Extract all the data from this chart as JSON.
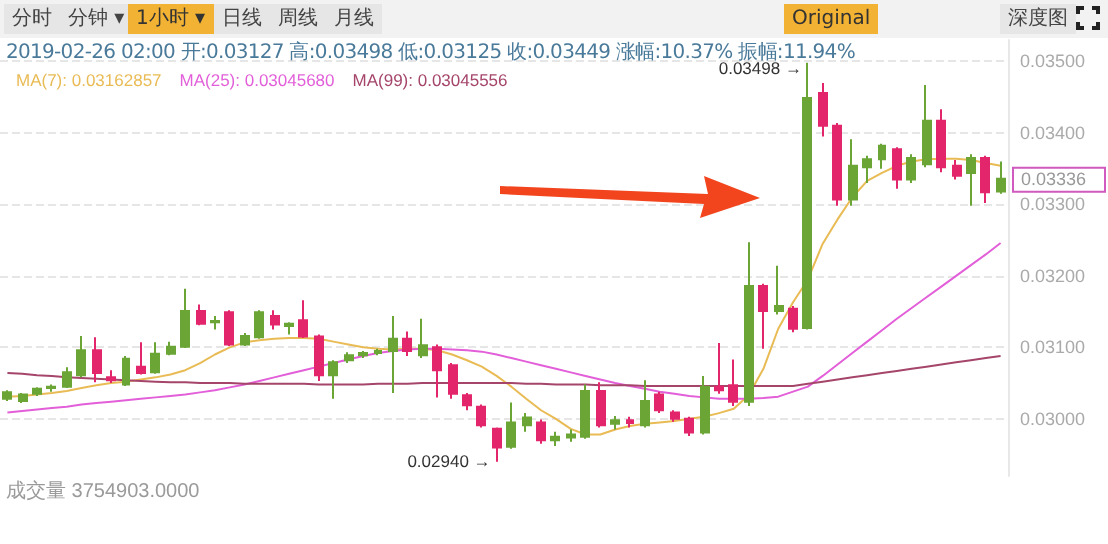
{
  "chart_data": {
    "type": "candlestick",
    "categories": [
      null,
      null,
      null,
      null,
      null,
      null,
      null,
      null,
      null,
      null,
      null,
      null,
      null,
      null,
      null,
      null,
      null,
      null,
      null,
      null,
      null,
      null,
      null,
      null,
      null,
      null,
      null,
      null,
      null,
      null,
      null,
      null,
      null,
      null,
      null,
      null,
      null,
      null,
      null,
      null,
      null,
      null,
      null,
      null,
      null,
      null,
      null,
      null,
      null,
      null,
      null,
      null,
      null,
      null,
      null,
      null,
      null,
      null,
      null,
      null,
      null,
      null,
      null,
      null,
      null,
      null,
      null,
      null
    ],
    "ohlc": [
      [
        0.03028,
        0.0304,
        0.03025,
        0.03037
      ],
      [
        0.03025,
        0.03036,
        0.03022,
        0.03034
      ],
      [
        0.03035,
        0.03044,
        0.03032,
        0.03042
      ],
      [
        0.03043,
        0.03048,
        0.03038,
        0.03045
      ],
      [
        0.03045,
        0.03072,
        0.03043,
        0.03065
      ],
      [
        0.03061,
        0.03116,
        0.03058,
        0.03096
      ],
      [
        0.03096,
        0.03114,
        0.03051,
        0.03064
      ],
      [
        0.03058,
        0.03068,
        0.0305,
        0.03054
      ],
      [
        0.03048,
        0.03088,
        0.03046,
        0.03084
      ],
      [
        0.03073,
        0.03107,
        0.03062,
        0.03064
      ],
      [
        0.03065,
        0.03107,
        0.03063,
        0.03091
      ],
      [
        0.03091,
        0.03108,
        0.03089,
        0.03101
      ],
      [
        0.03101,
        0.03182,
        0.03099,
        0.03151
      ],
      [
        0.03151,
        0.0316,
        0.03131,
        0.03133
      ],
      [
        0.03135,
        0.03144,
        0.03125,
        0.03137
      ],
      [
        0.03149,
        0.03152,
        0.03102,
        0.03104
      ],
      [
        0.03104,
        0.0312,
        0.03102,
        0.03116
      ],
      [
        0.03114,
        0.03152,
        0.03112,
        0.03149
      ],
      [
        0.03144,
        0.03152,
        0.03125,
        0.03132
      ],
      [
        0.0313,
        0.03135,
        0.03118,
        0.03133
      ],
      [
        0.03138,
        0.03166,
        0.03113,
        0.03115
      ],
      [
        0.03115,
        0.03118,
        0.03053,
        0.03061
      ],
      [
        0.03061,
        0.03082,
        0.03028,
        0.03079
      ],
      [
        0.03082,
        0.03093,
        0.03078,
        0.03089
      ],
      [
        0.03089,
        0.03095,
        0.03085,
        0.03092
      ],
      [
        0.03092,
        0.03098,
        0.03089,
        0.03095
      ],
      [
        0.03095,
        0.03144,
        0.03036,
        0.03112
      ],
      [
        0.03112,
        0.03122,
        0.03088,
        0.03095
      ],
      [
        0.03089,
        0.0314,
        0.03085,
        0.03103
      ],
      [
        0.031,
        0.03104,
        0.0303,
        0.03068
      ],
      [
        0.03075,
        0.03078,
        0.03028,
        0.03035
      ],
      [
        0.03033,
        0.03036,
        0.03012,
        0.03019
      ],
      [
        0.03017,
        0.0302,
        0.02988,
        0.02991
      ],
      [
        0.02986,
        0.02988,
        0.0294,
        0.0296
      ],
      [
        0.02961,
        0.03023,
        0.02958,
        0.02995
      ],
      [
        0.02991,
        0.03008,
        0.02982,
        0.03002
      ],
      [
        0.02995,
        0.02999,
        0.02965,
        0.0297
      ],
      [
        0.0297,
        0.02982,
        0.02962,
        0.02975
      ],
      [
        0.02974,
        0.02985,
        0.02968,
        0.02978
      ],
      [
        0.02975,
        0.03048,
        0.02972,
        0.03039
      ],
      [
        0.03039,
        0.03051,
        0.02988,
        0.02991
      ],
      [
        0.02993,
        0.03004,
        0.02985,
        0.02998
      ],
      [
        0.02998,
        0.03003,
        0.02988,
        0.02994
      ],
      [
        0.02991,
        0.03054,
        0.02988,
        0.03025
      ],
      [
        0.03034,
        0.03038,
        0.03008,
        0.03012
      ],
      [
        0.03009,
        0.03012,
        0.02996,
        0.03
      ],
      [
        0.03,
        0.03003,
        0.02976,
        0.02981
      ],
      [
        0.02981,
        0.0306,
        0.02978,
        0.03045
      ],
      [
        0.03045,
        0.03106,
        0.03035,
        0.0304
      ],
      [
        0.03047,
        0.03083,
        0.03018,
        0.03024
      ],
      [
        0.03024,
        0.03247,
        0.03018,
        0.03186
      ],
      [
        0.03186,
        0.03189,
        0.03098,
        0.03151
      ],
      [
        0.03151,
        0.03214,
        0.03146,
        0.03158
      ],
      [
        0.03154,
        0.03158,
        0.03121,
        0.03126
      ],
      [
        0.03127,
        0.03498,
        0.03125,
        0.03449
      ],
      [
        0.03456,
        0.0347,
        0.03395,
        0.0341
      ],
      [
        0.0341,
        0.03414,
        0.03298,
        0.03307
      ],
      [
        0.03307,
        0.03391,
        0.03298,
        0.03354
      ],
      [
        0.03352,
        0.03368,
        0.0333,
        0.03363
      ],
      [
        0.03363,
        0.03385,
        0.0335,
        0.03382
      ],
      [
        0.03377,
        0.0338,
        0.03322,
        0.03335
      ],
      [
        0.03335,
        0.0337,
        0.0333,
        0.03365
      ],
      [
        0.03356,
        0.03467,
        0.03352,
        0.03417
      ],
      [
        0.03417,
        0.03433,
        0.03345,
        0.03352
      ],
      [
        0.03354,
        0.03362,
        0.03335,
        0.0334
      ],
      [
        0.03344,
        0.0337,
        0.03298,
        0.03365
      ],
      [
        0.03365,
        0.03368,
        0.03302,
        0.03317
      ],
      [
        0.03318,
        0.0336,
        0.03315,
        0.03336
      ]
    ],
    "colors": [
      "#6aa535",
      "#6aa535",
      "#6aa535",
      "#6aa535",
      "#6aa535",
      "#6aa535",
      "#e3266c",
      "#e3266c",
      "#6aa535",
      "#e3266c",
      "#6aa535",
      "#6aa535",
      "#6aa535",
      "#e3266c",
      "#6aa535",
      "#e3266c",
      "#6aa535",
      "#6aa535",
      "#e3266c",
      "#6aa535",
      "#e3266c",
      "#e3266c",
      "#6aa535",
      "#6aa535",
      "#6aa535",
      "#6aa535",
      "#6aa535",
      "#e3266c",
      "#6aa535",
      "#e3266c",
      "#e3266c",
      "#e3266c",
      "#e3266c",
      "#e3266c",
      "#6aa535",
      "#6aa535",
      "#e3266c",
      "#6aa535",
      "#6aa535",
      "#6aa535",
      "#e3266c",
      "#6aa535",
      "#e3266c",
      "#6aa535",
      "#e3266c",
      "#e3266c",
      "#e3266c",
      "#6aa535",
      "#e3266c",
      "#e3266c",
      "#6aa535",
      "#e3266c",
      "#6aa535",
      "#e3266c",
      "#6aa535",
      "#e3266c",
      "#e3266c",
      "#6aa535",
      "#6aa535",
      "#6aa535",
      "#e3266c",
      "#6aa535",
      "#6aa535",
      "#e3266c",
      "#e3266c",
      "#6aa535",
      "#e3266c",
      "#6aa535"
    ],
    "series": [
      {
        "type": "line",
        "name": "MA(7): 0.03162857",
        "color": "#e9bb55",
        "values": [
          0.03031,
          0.03032,
          0.03034,
          0.03036,
          0.03039,
          0.03043,
          0.03047,
          0.0305,
          0.03052,
          0.03055,
          0.03058,
          0.03062,
          0.03068,
          0.03078,
          0.0309,
          0.031,
          0.03107,
          0.0311,
          0.03112,
          0.03113,
          0.03113,
          0.03112,
          0.03108,
          0.03104,
          0.031,
          0.03098,
          0.03097,
          0.03098,
          0.03098,
          0.03096,
          0.0309,
          0.03082,
          0.03073,
          0.0306,
          0.03045,
          0.03028,
          0.03012,
          0.03,
          0.02986,
          0.02978,
          0.02978,
          0.02985,
          0.0299,
          0.02993,
          0.02995,
          0.02997,
          0.03,
          0.03003,
          0.03008,
          0.03014,
          0.03033,
          0.0307,
          0.03126,
          0.03163,
          0.03195,
          0.03245,
          0.03279,
          0.0331,
          0.03333,
          0.03344,
          0.03354,
          0.0336,
          0.03363,
          0.03364,
          0.03364,
          0.03362,
          0.03358,
          0.03354
        ]
      },
      {
        "type": "line",
        "name": "MA(25): 0.03045680",
        "color": "#e25fd9",
        "values": [
          0.03009,
          0.03011,
          0.03013,
          0.03015,
          0.03017,
          0.0302,
          0.03022,
          0.03024,
          0.03026,
          0.03028,
          0.0303,
          0.03032,
          0.03034,
          0.03037,
          0.0304,
          0.03044,
          0.03048,
          0.03053,
          0.03058,
          0.03063,
          0.03068,
          0.03073,
          0.03078,
          0.03083,
          0.03088,
          0.03092,
          0.03095,
          0.03097,
          0.03098,
          0.03098,
          0.03097,
          0.03096,
          0.03094,
          0.0309,
          0.03085,
          0.0308,
          0.03075,
          0.0307,
          0.03065,
          0.0306,
          0.03055,
          0.0305,
          0.03046,
          0.03042,
          0.03038,
          0.03035,
          0.03032,
          0.0303,
          0.03028,
          0.03028,
          0.03028,
          0.03029,
          0.03031,
          0.03038,
          0.03045,
          0.0306,
          0.03076,
          0.03092,
          0.03108,
          0.03124,
          0.0314,
          0.03155,
          0.0317,
          0.03185,
          0.032,
          0.03215,
          0.0323,
          0.03246
        ]
      },
      {
        "type": "line",
        "name": "MA(99): 0.03045556",
        "color": "#a5456a",
        "values": [
          0.03064,
          0.03063,
          0.03061,
          0.0306,
          0.03058,
          0.03057,
          0.03056,
          0.03055,
          0.03054,
          0.03053,
          0.03052,
          0.03051,
          0.03051,
          0.0305,
          0.0305,
          0.0305,
          0.03049,
          0.03049,
          0.03049,
          0.03049,
          0.03049,
          0.03048,
          0.03048,
          0.03048,
          0.03048,
          0.03049,
          0.03049,
          0.03049,
          0.0305,
          0.0305,
          0.0305,
          0.0305,
          0.0305,
          0.0305,
          0.0305,
          0.03049,
          0.03049,
          0.03048,
          0.03048,
          0.03048,
          0.03047,
          0.03047,
          0.03047,
          0.03046,
          0.03046,
          0.03046,
          0.03046,
          0.03046,
          0.03046,
          0.03046,
          0.03046,
          0.03046,
          0.03046,
          0.03046,
          0.03049,
          0.03052,
          0.03055,
          0.03058,
          0.03061,
          0.03064,
          0.03067,
          0.0307,
          0.03073,
          0.03076,
          0.03079,
          0.03082,
          0.03085,
          0.03088
        ]
      }
    ],
    "ylim": [
      0.0292,
      0.0353
    ],
    "yticks": [
      {
        "value": 0.03,
        "label": "0.03000"
      },
      {
        "value": 0.031,
        "label": "0.03100"
      },
      {
        "value": 0.032,
        "label": "0.03200"
      },
      {
        "value": 0.033,
        "label": "0.03300"
      },
      {
        "value": 0.034,
        "label": "0.03400"
      },
      {
        "value": 0.035,
        "label": "0.03500"
      }
    ],
    "tick_labels": "y",
    "grid": "y",
    "legend": "top left",
    "marker": "none",
    "line_style": "solid",
    "annotations": [
      "分时",
      "分钟 ▾",
      "1小时 ▾",
      "日线",
      "周线",
      "月线",
      "Original",
      "深度图",
      "2019-02-26 02:00  开:0.03127 高:0.03498 低:0.03125 收:0.03449 涨幅:10.37% 振幅:11.94%",
      "成交量 3754903.0000",
      "0.03336",
      "0.03498 →",
      "0.02940 →"
    ]
  }
}
